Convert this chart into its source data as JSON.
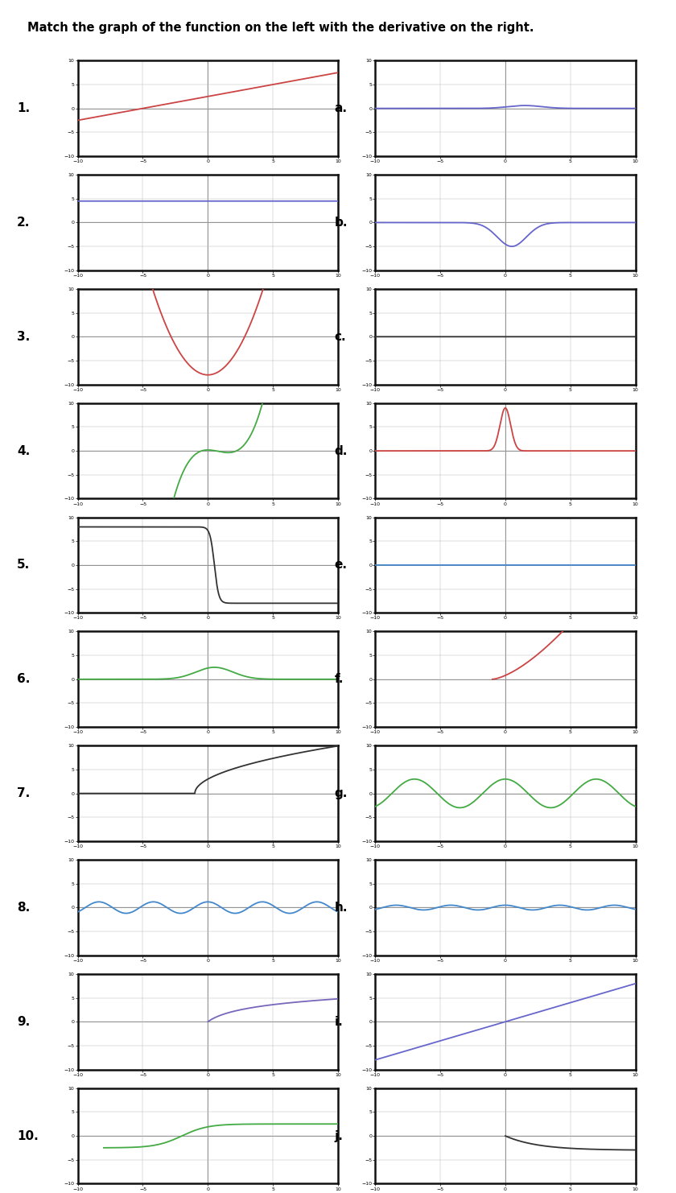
{
  "title": "Match the graph of the function on the left with the derivative on the right.",
  "left_labels": [
    "1.",
    "2.",
    "3.",
    "4.",
    "5.",
    "6.",
    "7.",
    "8.",
    "9.",
    "10."
  ],
  "right_labels": [
    "a.",
    "b.",
    "c.",
    "d.",
    "e.",
    "f.",
    "g.",
    "h.",
    "i.",
    "j."
  ],
  "left_colors": [
    "#cc4444",
    "#6666cc",
    "#cc4444",
    "#44aa44",
    "#333333",
    "#44aa44",
    "#333333",
    "#4488cc",
    "#7766bb",
    "#44aa44"
  ],
  "right_colors": [
    "#6666cc",
    "#6666cc",
    "#333333",
    "#cc4444",
    "#4488cc",
    "#cc4444",
    "#44aa44",
    "#4488cc",
    "#6666cc",
    "#333333"
  ],
  "xlim": [
    -10,
    10
  ],
  "ylim": [
    -10,
    10
  ],
  "xticks": [
    -10,
    -5,
    0,
    5,
    10
  ],
  "yticks": [
    -10,
    -5,
    0,
    5,
    10
  ]
}
